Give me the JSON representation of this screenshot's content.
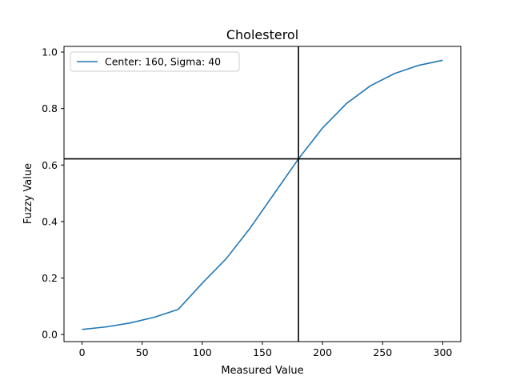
{
  "chart_data": {
    "type": "line",
    "title": "Cholesterol",
    "xlabel": "Measured Value",
    "ylabel": "Fuzzy Value",
    "xlim": [
      -15,
      315
    ],
    "ylim": [
      -0.025,
      1.02
    ],
    "x_ticks": [
      0,
      50,
      100,
      150,
      200,
      250,
      300
    ],
    "x_tick_labels": [
      "0",
      "50",
      "100",
      "150",
      "200",
      "250",
      "300"
    ],
    "y_ticks": [
      0.0,
      0.2,
      0.4,
      0.6,
      0.8,
      1.0
    ],
    "y_tick_labels": [
      "0.0",
      "0.2",
      "0.4",
      "0.6",
      "0.8",
      "1.0"
    ],
    "grid": false,
    "legend_position": "top-left",
    "series": [
      {
        "name": "Center: 160, Sigma: 40",
        "color": "#1f77b4",
        "x": [
          0,
          20,
          40,
          60,
          80,
          100,
          120,
          140,
          160,
          180,
          200,
          220,
          240,
          260,
          280,
          300
        ],
        "y": [
          0.018,
          0.027,
          0.041,
          0.061,
          0.089,
          0.182,
          0.269,
          0.378,
          0.5,
          0.622,
          0.731,
          0.818,
          0.881,
          0.924,
          0.953,
          0.971
        ]
      }
    ],
    "reference_lines": {
      "vertical_x": 180,
      "horizontal_y": 0.622,
      "color": "#000000"
    }
  }
}
